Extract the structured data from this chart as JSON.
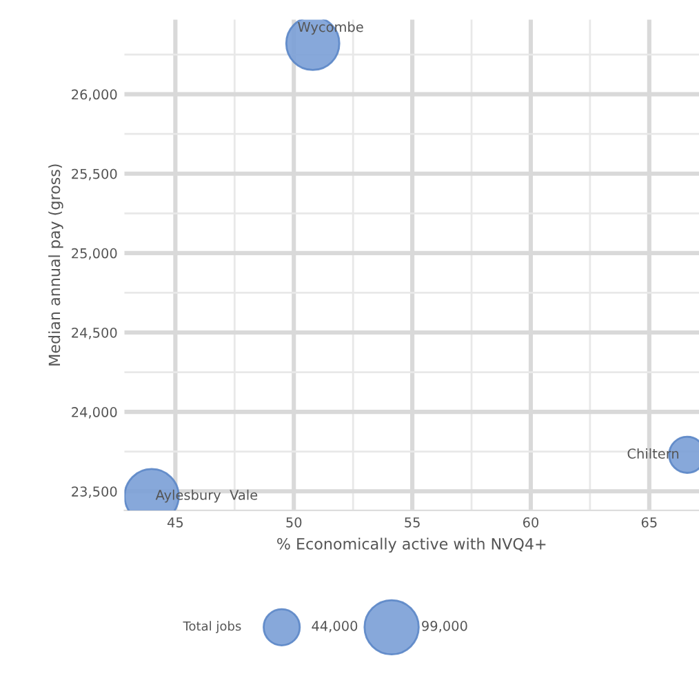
{
  "chart_data": {
    "type": "bubble",
    "xlabel": "% Economically active with NVQ4+",
    "ylabel": "Median annual pay (gross)",
    "legend_title": "Total jobs",
    "x": [
      50.8,
      66.6,
      44.0
    ],
    "series": [
      {
        "color": "#7a9fd6",
        "values": [
          26320,
          23730,
          23470
        ],
        "sizes": [
          95000,
          44000,
          99000
        ]
      }
    ],
    "size_legend": [
      {
        "value": 44000,
        "label": "44,000"
      },
      {
        "value": 99000,
        "label": "99,000"
      }
    ],
    "annotations": [
      {
        "text": "Wycombe",
        "x": 50.8,
        "y": 26320
      },
      {
        "text": "Chiltern",
        "x": 66.6,
        "y": 23730
      },
      {
        "text": "Aylesbury  Vale",
        "x": 44.0,
        "y": 23470
      }
    ],
    "xlim": [
      42.85,
      67.1
    ],
    "xticks": [
      45,
      50,
      55,
      60,
      65
    ],
    "ylim": [
      23380,
      26470
    ],
    "yticks": [
      {
        "value": 23500,
        "label": "23,500"
      },
      {
        "value": 24000,
        "label": "24,000"
      },
      {
        "value": 24500,
        "label": "24,500"
      },
      {
        "value": 25000,
        "label": "25,000"
      },
      {
        "value": 25500,
        "label": "25,500"
      },
      {
        "value": 26000,
        "label": "26,000"
      }
    ],
    "grid": true,
    "marker": "circle"
  }
}
